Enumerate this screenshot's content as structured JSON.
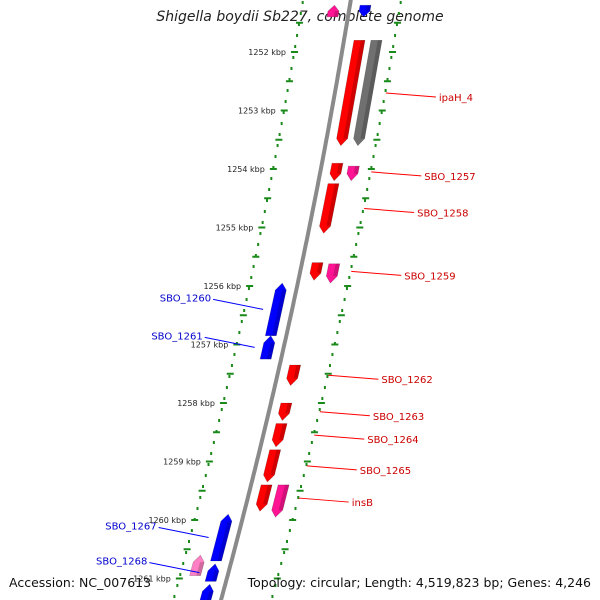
{
  "title": "Shigella boydii Sb227, complete genome",
  "footer": {
    "accession": "Accession: NC_007613",
    "summary": "Topology: circular; Length: 4,519,823 bp; Genes: 4,246"
  },
  "colors": {
    "backbone": "#8a8a8a",
    "ticks": "#1a8a1a",
    "forward": "#ff0000",
    "reverse": "#0000ff",
    "pseudo": "#ff1493",
    "pseudo_light": "#ff7fc4",
    "gray_gene": "#707070",
    "forward_label": "#cc0000",
    "reverse_label": "#0000cc"
  },
  "kbp_labels": [
    "1252 kbp",
    "1253 kbp",
    "1254 kbp",
    "1255 kbp",
    "1256 kbp",
    "1257 kbp",
    "1258 kbp",
    "1259 kbp",
    "1260 kbp",
    "1261 kbp"
  ],
  "forward_genes": [
    {
      "label": "ipaH_4",
      "start_kbp": 1251.8,
      "end_kbp": 1253.6,
      "color": "forward"
    },
    {
      "label": "",
      "start_kbp": 1251.8,
      "end_kbp": 1253.6,
      "color": "gray_gene",
      "track": 2
    },
    {
      "label": "SBO_1257",
      "start_kbp": 1253.9,
      "end_kbp": 1254.2,
      "color": "forward"
    },
    {
      "label": "",
      "start_kbp": 1253.95,
      "end_kbp": 1254.2,
      "color": "pseudo",
      "track": 2
    },
    {
      "label": "SBO_1258",
      "start_kbp": 1254.25,
      "end_kbp": 1255.1,
      "color": "forward"
    },
    {
      "label": "SBO_1259",
      "start_kbp": 1255.6,
      "end_kbp": 1255.9,
      "color": "forward"
    },
    {
      "label": "",
      "start_kbp": 1255.62,
      "end_kbp": 1255.95,
      "color": "pseudo",
      "track": 2
    },
    {
      "label": "SBO_1262",
      "start_kbp": 1257.35,
      "end_kbp": 1257.7,
      "color": "forward"
    },
    {
      "label": "SBO_1263",
      "start_kbp": 1258.0,
      "end_kbp": 1258.3,
      "color": "forward"
    },
    {
      "label": "SBO_1264",
      "start_kbp": 1258.35,
      "end_kbp": 1258.75,
      "color": "forward"
    },
    {
      "label": "SBO_1265",
      "start_kbp": 1258.8,
      "end_kbp": 1259.35,
      "color": "forward"
    },
    {
      "label": "insB",
      "start_kbp": 1259.4,
      "end_kbp": 1259.85,
      "color": "forward"
    },
    {
      "label": "",
      "start_kbp": 1259.4,
      "end_kbp": 1259.95,
      "color": "pseudo",
      "track": 2
    }
  ],
  "reverse_genes": [
    {
      "label": "SBO_1260",
      "start_kbp": 1255.95,
      "end_kbp": 1256.85,
      "color": "reverse"
    },
    {
      "label": "SBO_1261",
      "start_kbp": 1256.85,
      "end_kbp": 1257.25,
      "color": "reverse"
    },
    {
      "label": "SBO_1267",
      "start_kbp": 1259.9,
      "end_kbp": 1260.7,
      "color": "reverse"
    },
    {
      "label": "SBO_1268",
      "start_kbp": 1260.75,
      "end_kbp": 1261.05,
      "color": "reverse"
    },
    {
      "label": "",
      "start_kbp": 1260.6,
      "end_kbp": 1260.95,
      "color": "pseudo_light",
      "track": 2
    },
    {
      "label": "",
      "start_kbp": 1261.1,
      "end_kbp": 1261.5,
      "color": "reverse"
    }
  ],
  "top_fragment_genes": [
    {
      "label": "",
      "start_kbp": 1251.2,
      "end_kbp": 1251.4,
      "color": "pseudo"
    },
    {
      "label": "",
      "start_kbp": 1251.2,
      "end_kbp": 1251.4,
      "color": "reverse"
    }
  ]
}
